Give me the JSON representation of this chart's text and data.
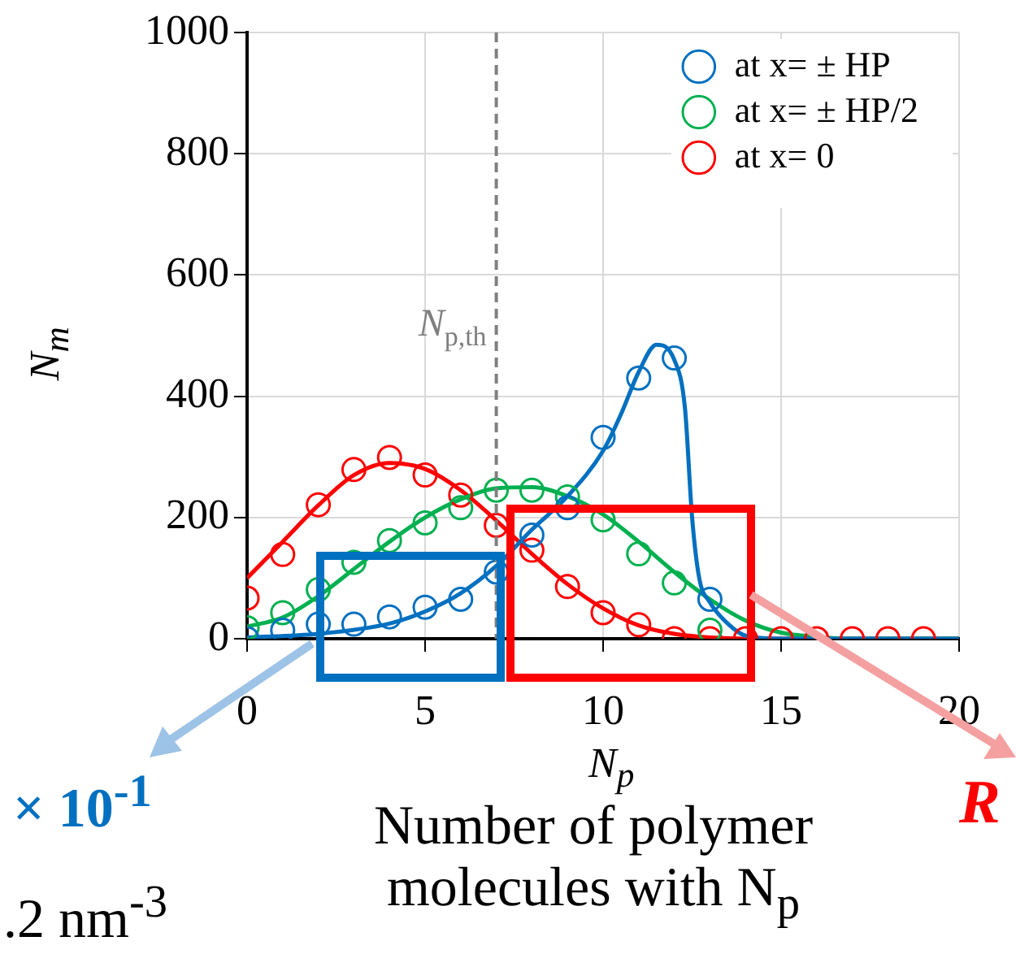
{
  "chart_data": {
    "type": "scatter",
    "xlabel": "N$_{p}$",
    "ylabel": "N$_{m}$",
    "xlim": [
      0,
      20
    ],
    "xticks": [
      0,
      5,
      10,
      15,
      20
    ],
    "ylim": [
      0,
      1000
    ],
    "yticks": [
      0,
      200,
      400,
      600,
      800,
      1000
    ],
    "grid": true,
    "legend": "top right",
    "marker": "circle",
    "ref_lines": [
      {
        "axis": "x",
        "value": 7,
        "label": "N$_{p,th}$",
        "color": "#7f7f7f",
        "line_style": "dashed"
      }
    ],
    "annotations": [
      "Number of polymer molecules with N$_{p}$",
      "× 10$^{-1}$",
      ".2 nm$^{-3}$",
      "R"
    ],
    "series": [
      {
        "name": "at x= ± HP",
        "type": "scatter",
        "color": "#0070c0",
        "x": [
          0,
          1,
          2,
          3,
          4,
          5,
          6,
          7,
          8,
          9,
          10,
          11,
          12,
          13
        ],
        "values": [
          0,
          14,
          24,
          24,
          36,
          52,
          65,
          110,
          171,
          216,
          332,
          430,
          463,
          65
        ]
      },
      {
        "name": "at x= ± HP/2",
        "type": "scatter",
        "color": "#00b050",
        "x": [
          0,
          1,
          2,
          3,
          4,
          5,
          6,
          7,
          8,
          9,
          10,
          11,
          12,
          13
        ],
        "values": [
          18,
          43,
          81,
          126,
          162,
          191,
          216,
          245,
          245,
          234,
          196,
          140,
          92,
          14
        ]
      },
      {
        "name": "at x= 0",
        "type": "scatter",
        "color": "#ff0000",
        "x": [
          0,
          1,
          2,
          3,
          4,
          5,
          6,
          7,
          8,
          9,
          10,
          11,
          12,
          13,
          14,
          15,
          16,
          17,
          18,
          19
        ],
        "values": [
          67,
          139,
          221,
          279,
          299,
          270,
          237,
          187,
          146,
          86,
          43,
          23,
          0,
          0,
          0,
          0,
          0,
          0,
          0,
          0
        ]
      },
      {
        "type": "line",
        "marker": "none",
        "color": "#0070c0",
        "x": [
          0,
          2,
          4,
          5,
          6,
          7,
          8,
          9,
          10,
          10.5,
          11,
          11.5,
          12,
          12.3,
          12.5,
          12.7,
          13,
          13.5,
          14,
          15,
          20
        ],
        "values": [
          2,
          8,
          25,
          45,
          75,
          120,
          180,
          235,
          310,
          370,
          440,
          485,
          460,
          380,
          200,
          100,
          60,
          25,
          5,
          0,
          0
        ]
      },
      {
        "type": "line",
        "marker": "none",
        "color": "#00b050",
        "x": [
          0,
          1,
          2,
          3,
          4,
          5,
          6,
          7,
          8,
          9,
          10,
          11,
          12,
          13,
          14,
          15,
          16,
          17,
          20
        ],
        "values": [
          20,
          35,
          70,
          115,
          160,
          200,
          230,
          248,
          250,
          235,
          205,
          160,
          110,
          65,
          30,
          10,
          3,
          0,
          0
        ]
      },
      {
        "type": "line",
        "marker": "none",
        "color": "#ff0000",
        "x": [
          0,
          1,
          2,
          3,
          4,
          5,
          6,
          7,
          8,
          9,
          10,
          11,
          12,
          13,
          14,
          20
        ],
        "values": [
          100,
          160,
          220,
          270,
          290,
          280,
          245,
          195,
          140,
          90,
          50,
          22,
          8,
          2,
          0,
          0
        ]
      }
    ]
  }
}
